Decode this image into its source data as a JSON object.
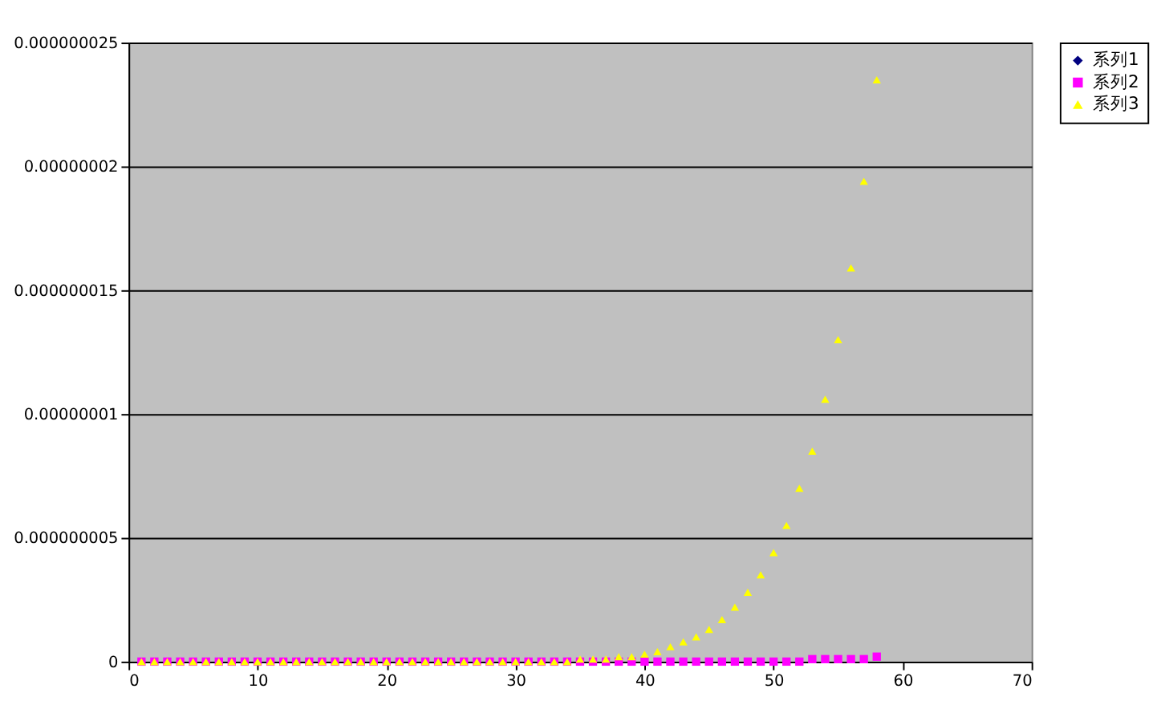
{
  "chart_data": {
    "type": "scatter",
    "x": [
      1,
      2,
      3,
      4,
      5,
      6,
      7,
      8,
      9,
      10,
      11,
      12,
      13,
      14,
      15,
      16,
      17,
      18,
      19,
      20,
      21,
      22,
      23,
      24,
      25,
      26,
      27,
      28,
      29,
      30,
      31,
      32,
      33,
      34,
      35,
      36,
      37,
      38,
      39,
      40,
      41,
      42,
      43,
      44,
      45,
      46,
      47,
      48,
      49,
      50,
      51,
      52,
      53,
      54,
      55,
      56,
      57,
      58
    ],
    "series": [
      {
        "name": "系列1",
        "color": "#000080",
        "marker": "diamond",
        "values": [
          null,
          null,
          null,
          null,
          null,
          null,
          null,
          null,
          null,
          null,
          null,
          null,
          null,
          null,
          null,
          null,
          null,
          null,
          null,
          null,
          null,
          null,
          null,
          null,
          null,
          null,
          null,
          null,
          null,
          null,
          null,
          null,
          null,
          null,
          null,
          null,
          null,
          null,
          null,
          null,
          null,
          null,
          null,
          null,
          null,
          null,
          null,
          null,
          null,
          null,
          null,
          null,
          null,
          null,
          null,
          null,
          null,
          null
        ]
      },
      {
        "name": "系列2",
        "color": "#ff00ff",
        "marker": "square",
        "values": [
          0,
          0,
          0,
          0,
          0,
          0,
          0,
          0,
          0,
          0,
          0,
          0,
          0,
          0,
          0,
          0,
          0,
          0,
          0,
          0,
          0,
          0,
          0,
          0,
          0,
          0,
          0,
          0,
          0,
          0,
          0,
          0,
          0,
          0,
          0,
          0,
          0,
          0,
          0,
          0,
          0,
          0,
          0,
          0,
          0,
          0,
          0,
          0,
          0,
          0,
          0,
          0,
          1e-10,
          1e-10,
          1e-10,
          1e-10,
          1e-10,
          2e-10
        ]
      },
      {
        "name": "系列3",
        "color": "#ffff00",
        "marker": "triangle",
        "values": [
          0,
          0,
          0,
          0,
          0,
          0,
          0,
          0,
          0,
          0,
          0,
          0,
          0,
          0,
          0,
          0,
          0,
          0,
          0,
          0,
          0,
          0,
          0,
          0,
          0,
          0,
          0,
          0,
          0,
          0,
          0,
          0,
          0,
          0,
          1e-10,
          1e-10,
          1e-10,
          2e-10,
          2e-10,
          3e-10,
          4e-10,
          6e-10,
          8e-10,
          1e-09,
          1.3e-09,
          1.7e-09,
          2.2e-09,
          2.8e-09,
          3.5e-09,
          4.4e-09,
          5.5e-09,
          7e-09,
          8.5e-09,
          1.06e-08,
          1.3e-08,
          1.59e-08,
          1.94e-08,
          2.35e-08
        ]
      }
    ],
    "xlim": [
      0,
      70
    ],
    "xticks": [
      0,
      10,
      20,
      30,
      40,
      50,
      60,
      70
    ],
    "ylim": [
      0,
      2.5e-08
    ],
    "yticks": [
      0,
      {
        "value": 5e-09,
        "label": "0.000000005"
      },
      {
        "value": 1e-08,
        "label": "0.00000001"
      },
      {
        "value": 1.5e-08,
        "label": "0.000000015"
      },
      {
        "value": 2e-08,
        "label": "0.00000002"
      },
      {
        "value": 2.5e-08,
        "label": "0.000000025"
      }
    ],
    "grid": "y",
    "legend": "right"
  }
}
